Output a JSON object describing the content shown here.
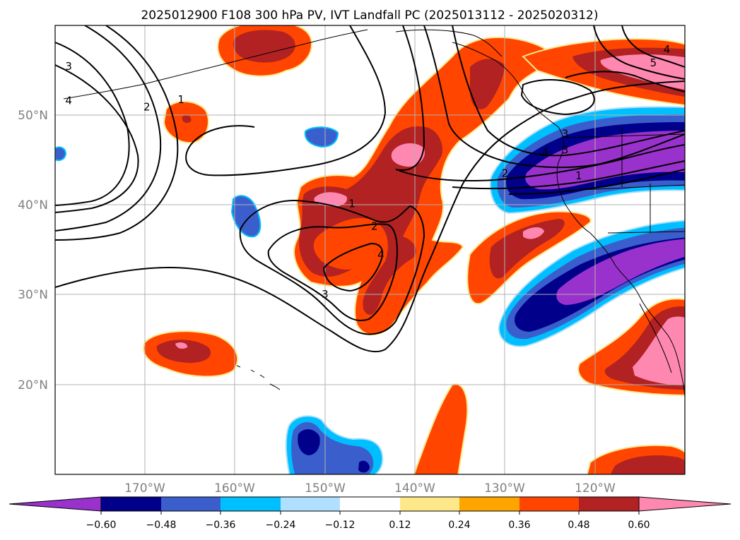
{
  "title": "2025012900 F108 300 hPa PV, IVT Landfall PC (2025013112 - 2025020312)",
  "map": {
    "lon_range": [
      180,
      110
    ],
    "lat_range": [
      10,
      60
    ],
    "lat_labels": [
      "50°N",
      "40°N",
      "30°N",
      "20°N"
    ],
    "lon_labels": [
      "170°W",
      "160°W",
      "150°W",
      "140°W",
      "130°W",
      "120°W"
    ],
    "gridlines": true
  },
  "colorbar": {
    "ticks": [
      "−0.60",
      "−0.48",
      "−0.36",
      "−0.24",
      "−0.12",
      "0.12",
      "0.24",
      "0.36",
      "0.48",
      "0.60"
    ],
    "colors": [
      "#9932cc",
      "#00008b",
      "#3a5fcd",
      "#00bfff",
      "#b0e0ff",
      "#ffffff",
      "#ffe88a",
      "#ffa500",
      "#ff4500",
      "#b22222",
      "#ff88b0"
    ],
    "extend": "both"
  },
  "contour_labels": [
    {
      "text": "3",
      "lon": 178.5,
      "lat": 55.2
    },
    {
      "text": "4",
      "lon": 178.5,
      "lat": 51.4
    },
    {
      "text": "2",
      "lon": 169.8,
      "lat": 50.7
    },
    {
      "text": "1",
      "lon": 166.0,
      "lat": 51.5
    },
    {
      "text": "1",
      "lon": 147.0,
      "lat": 39.9
    },
    {
      "text": "2",
      "lon": 144.5,
      "lat": 37.4
    },
    {
      "text": "4",
      "lon": 143.8,
      "lat": 34.2
    },
    {
      "text": "3",
      "lon": 150.0,
      "lat": 29.8
    },
    {
      "text": "4",
      "lon": 112.0,
      "lat": 57.1
    },
    {
      "text": "5",
      "lon": 113.5,
      "lat": 55.6
    },
    {
      "text": "3",
      "lon": 123.3,
      "lat": 47.7
    },
    {
      "text": "3",
      "lon": 123.3,
      "lat": 45.9
    },
    {
      "text": "4",
      "lon": 125.5,
      "lat": 45.7
    },
    {
      "text": "2",
      "lon": 130.0,
      "lat": 43.3
    },
    {
      "text": "1",
      "lon": 121.8,
      "lat": 43.0
    }
  ]
}
